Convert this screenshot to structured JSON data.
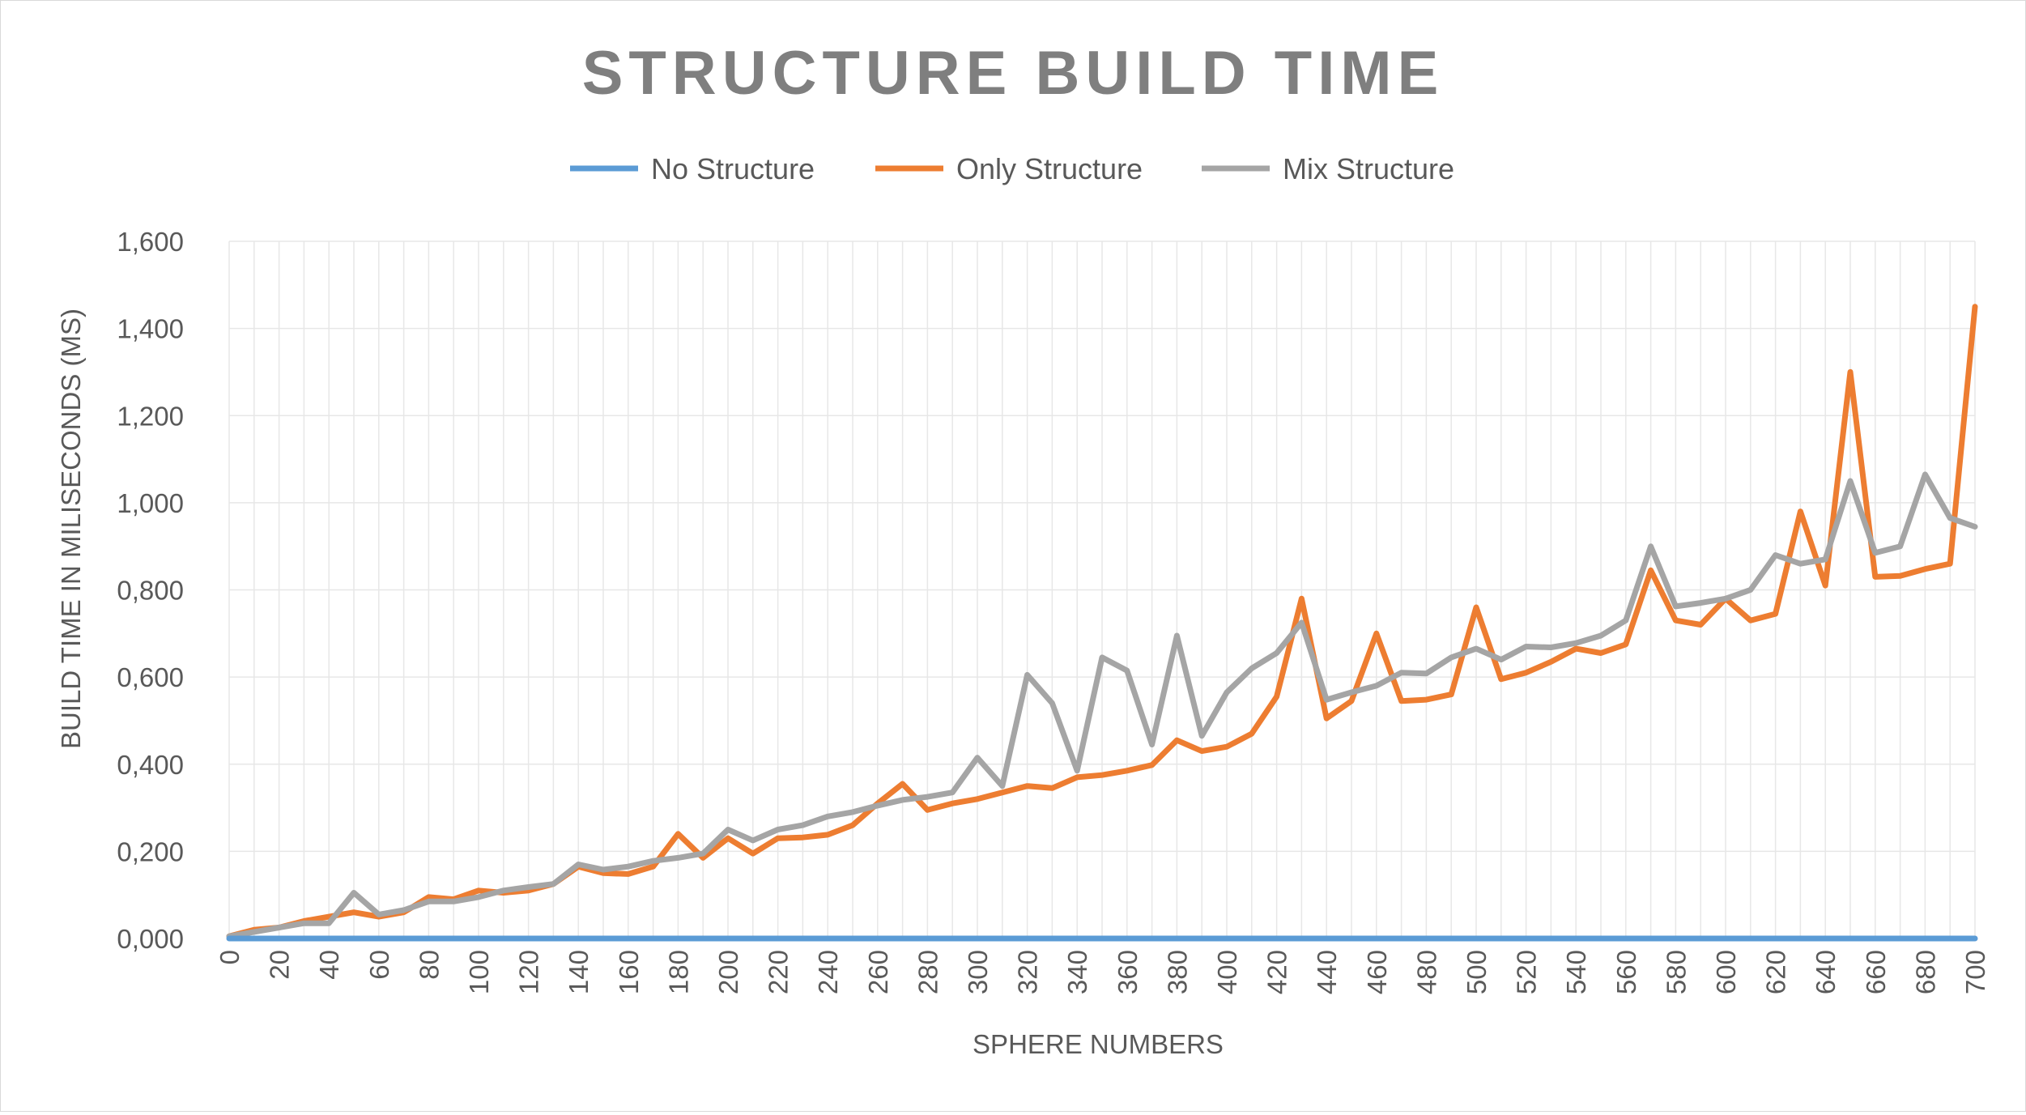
{
  "chart_data": {
    "type": "line",
    "title": "STRUCTURE BUILD TIME",
    "xlabel": "SPHERE NUMBERS",
    "ylabel": "BUILD TIME IN MILISECONDS (MS)",
    "x": [
      0,
      10,
      20,
      30,
      40,
      50,
      60,
      70,
      80,
      90,
      100,
      110,
      120,
      130,
      140,
      150,
      160,
      170,
      180,
      190,
      200,
      210,
      220,
      230,
      240,
      250,
      260,
      270,
      280,
      290,
      300,
      310,
      320,
      330,
      340,
      350,
      360,
      370,
      380,
      390,
      400,
      410,
      420,
      430,
      440,
      450,
      460,
      470,
      480,
      490,
      500,
      510,
      520,
      530,
      540,
      550,
      560,
      570,
      580,
      590,
      600,
      610,
      620,
      630,
      640,
      650,
      660,
      670,
      680,
      690,
      700
    ],
    "x_tick_labels": [
      "0",
      "20",
      "40",
      "60",
      "80",
      "100",
      "120",
      "140",
      "160",
      "180",
      "200",
      "220",
      "240",
      "260",
      "280",
      "300",
      "320",
      "340",
      "360",
      "380",
      "400",
      "420",
      "440",
      "460",
      "480",
      "500",
      "520",
      "540",
      "560",
      "580",
      "600",
      "620",
      "640",
      "660",
      "680",
      "700"
    ],
    "y_tick_labels": [
      "0,000",
      "0,200",
      "0,400",
      "0,600",
      "0,800",
      "1,000",
      "1,200",
      "1,400",
      "1,600"
    ],
    "ylim": [
      0,
      1.6
    ],
    "grid": true,
    "legend_position": "top",
    "series": [
      {
        "name": "No Structure",
        "color": "#5b9bd5",
        "values": [
          0,
          0,
          0,
          0,
          0,
          0,
          0,
          0,
          0,
          0,
          0,
          0,
          0,
          0,
          0,
          0,
          0,
          0,
          0,
          0,
          0,
          0,
          0,
          0,
          0,
          0,
          0,
          0,
          0,
          0,
          0,
          0,
          0,
          0,
          0,
          0,
          0,
          0,
          0,
          0,
          0,
          0,
          0,
          0,
          0,
          0,
          0,
          0,
          0,
          0,
          0,
          0,
          0,
          0,
          0,
          0,
          0,
          0,
          0,
          0,
          0,
          0,
          0,
          0,
          0,
          0,
          0,
          0,
          0,
          0,
          0
        ]
      },
      {
        "name": "Only Structure",
        "color": "#ed7d31",
        "values": [
          0.005,
          0.02,
          0.025,
          0.04,
          0.05,
          0.06,
          0.05,
          0.06,
          0.095,
          0.09,
          0.11,
          0.105,
          0.11,
          0.125,
          0.165,
          0.15,
          0.148,
          0.165,
          0.24,
          0.185,
          0.23,
          0.195,
          0.23,
          0.232,
          0.238,
          0.26,
          0.31,
          0.355,
          0.295,
          0.31,
          0.32,
          0.335,
          0.35,
          0.345,
          0.37,
          0.375,
          0.385,
          0.398,
          0.455,
          0.43,
          0.44,
          0.47,
          0.555,
          0.78,
          0.505,
          0.545,
          0.7,
          0.545,
          0.548,
          0.56,
          0.76,
          0.595,
          0.61,
          0.635,
          0.665,
          0.655,
          0.675,
          0.845,
          0.73,
          0.72,
          0.78,
          0.73,
          0.745,
          0.98,
          0.81,
          1.3,
          0.83,
          0.832,
          0.848,
          0.86,
          1.45
        ]
      },
      {
        "name": "Mix Structure",
        "color": "#a5a5a5",
        "values": [
          0.005,
          0.015,
          0.025,
          0.035,
          0.035,
          0.105,
          0.055,
          0.065,
          0.085,
          0.085,
          0.095,
          0.11,
          0.118,
          0.125,
          0.17,
          0.158,
          0.165,
          0.178,
          0.185,
          0.195,
          0.25,
          0.225,
          0.25,
          0.26,
          0.28,
          0.29,
          0.305,
          0.318,
          0.325,
          0.335,
          0.415,
          0.35,
          0.605,
          0.54,
          0.385,
          0.645,
          0.615,
          0.445,
          0.695,
          0.465,
          0.565,
          0.62,
          0.655,
          0.725,
          0.548,
          0.565,
          0.58,
          0.61,
          0.608,
          0.645,
          0.665,
          0.64,
          0.67,
          0.668,
          0.678,
          0.695,
          0.73,
          0.9,
          0.762,
          0.77,
          0.78,
          0.8,
          0.88,
          0.86,
          0.87,
          1.05,
          0.885,
          0.9,
          1.065,
          0.965,
          0.945
        ]
      }
    ]
  }
}
